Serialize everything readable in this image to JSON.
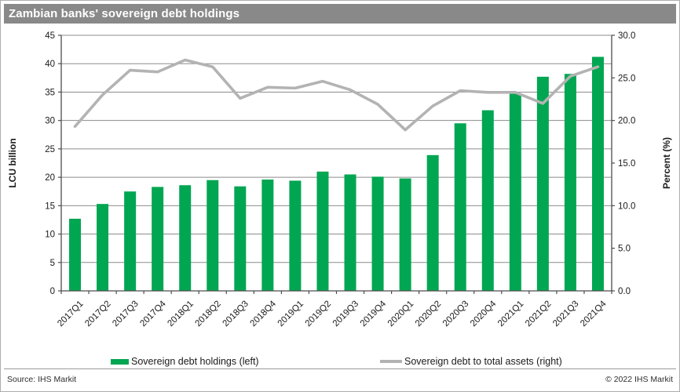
{
  "title_bar": {
    "text": "Zambian banks' sovereign debt holdings"
  },
  "footer": {
    "source": "Source: IHS Markit",
    "copyright": "© 2022 IHS Markit"
  },
  "chart_data": {
    "type": "bar",
    "title": "Zambian banks' sovereign debt holdings",
    "categories": [
      "2017Q1",
      "2017Q2",
      "2017Q3",
      "2017Q4",
      "2018Q1",
      "2018Q2",
      "2018Q3",
      "2018Q4",
      "2019Q1",
      "2019Q2",
      "2019Q3",
      "2019Q4",
      "2020Q1",
      "2020Q2",
      "2020Q3",
      "2020Q4",
      "2021Q1",
      "2021Q2",
      "2021Q3",
      "2021Q4"
    ],
    "series": [
      {
        "name": "Sovereign debt holdings (left)",
        "type": "bar",
        "axis": "left",
        "values": [
          12.7,
          15.3,
          17.5,
          18.3,
          18.6,
          19.5,
          18.4,
          19.6,
          19.4,
          21.0,
          20.5,
          20.1,
          19.8,
          23.9,
          29.5,
          31.8,
          34.7,
          37.7,
          38.2,
          41.2
        ]
      },
      {
        "name": "Sovereign debt to total assets (right)",
        "type": "line",
        "axis": "right",
        "values": [
          19.3,
          23.0,
          25.9,
          25.7,
          27.1,
          26.3,
          22.6,
          23.9,
          23.8,
          24.6,
          23.6,
          21.9,
          18.9,
          21.7,
          23.5,
          23.3,
          23.3,
          22.0,
          25.2,
          26.3
        ]
      }
    ],
    "ylabel_left": "LCU billion",
    "ylabel_right": "Percent (%)",
    "ylim_left": [
      0,
      45
    ],
    "ylim_right": [
      0,
      30
    ],
    "yticks_left": [
      0,
      5,
      10,
      15,
      20,
      25,
      30,
      35,
      40,
      45
    ],
    "yticks_right": [
      0,
      5,
      10,
      15,
      20,
      25,
      30
    ],
    "grid": true,
    "legend_position": "bottom",
    "colors": {
      "bar": "#00A651",
      "line": "#B3B3B3",
      "grid": "#8C8C8C",
      "axis": "#4D4D4D",
      "text": "#1A1A1A",
      "title_bg": "#898989",
      "title_fg": "#FFFFFF"
    }
  }
}
